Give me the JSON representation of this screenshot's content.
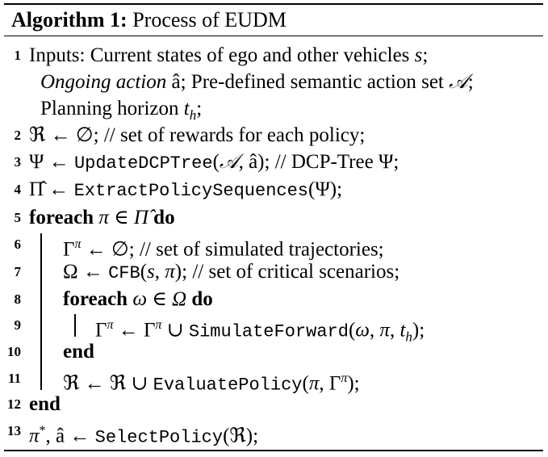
{
  "algorithm": {
    "label": "Algorithm 1:",
    "title": "Process of EUDM"
  },
  "lines": [
    {
      "num": "1",
      "parts": [
        "Inputs: Current states of ego and other vehicles ",
        "s",
        ";"
      ]
    },
    {
      "num": "",
      "parts": [
        "Ongoing action",
        " â; Pre-defined semantic action set ",
        "𝒜",
        ";"
      ]
    },
    {
      "num": "",
      "parts": [
        "Planning horizon ",
        "t",
        "h",
        ";"
      ]
    },
    {
      "num": "2",
      "parts": [
        "ℜ ← ∅; // set of rewards for each policy;"
      ]
    },
    {
      "num": "3",
      "parts": [
        "Ψ ← ",
        "UpdateDCPTree",
        "(",
        "𝒜",
        ", â); // DCP-Tree Ψ;"
      ]
    },
    {
      "num": "4",
      "parts": [
        "Π̂ ← ",
        "ExtractPolicySequences",
        "(Ψ);"
      ]
    },
    {
      "num": "5",
      "parts": [
        "foreach",
        " π ∈ Π̂ ",
        "do"
      ]
    },
    {
      "num": "6",
      "parts": [
        "Γ",
        "π",
        " ← ∅; // set of simulated trajectories;"
      ]
    },
    {
      "num": "7",
      "parts": [
        "Ω ← ",
        "CFB",
        "(",
        "s",
        ", ",
        "π",
        "); // set of critical scenarios;"
      ]
    },
    {
      "num": "8",
      "parts": [
        "foreach",
        " ω ∈ Ω ",
        "do"
      ]
    },
    {
      "num": "9",
      "parts": [
        "Γ",
        "π",
        " ← Γ",
        "π",
        " ∪ ",
        "SimulateForward",
        "(",
        "ω",
        ", ",
        "π",
        ", ",
        "t",
        "h",
        ");"
      ]
    },
    {
      "num": "10",
      "parts": [
        "end"
      ]
    },
    {
      "num": "11",
      "parts": [
        "ℜ ← ℜ ∪ ",
        "EvaluatePolicy",
        "(",
        "π",
        ", Γ",
        "π",
        ");"
      ]
    },
    {
      "num": "12",
      "parts": [
        "end"
      ]
    },
    {
      "num": "13",
      "parts": [
        "π",
        "*",
        ", â ← ",
        "SelectPolicy",
        "(ℜ);"
      ]
    }
  ]
}
